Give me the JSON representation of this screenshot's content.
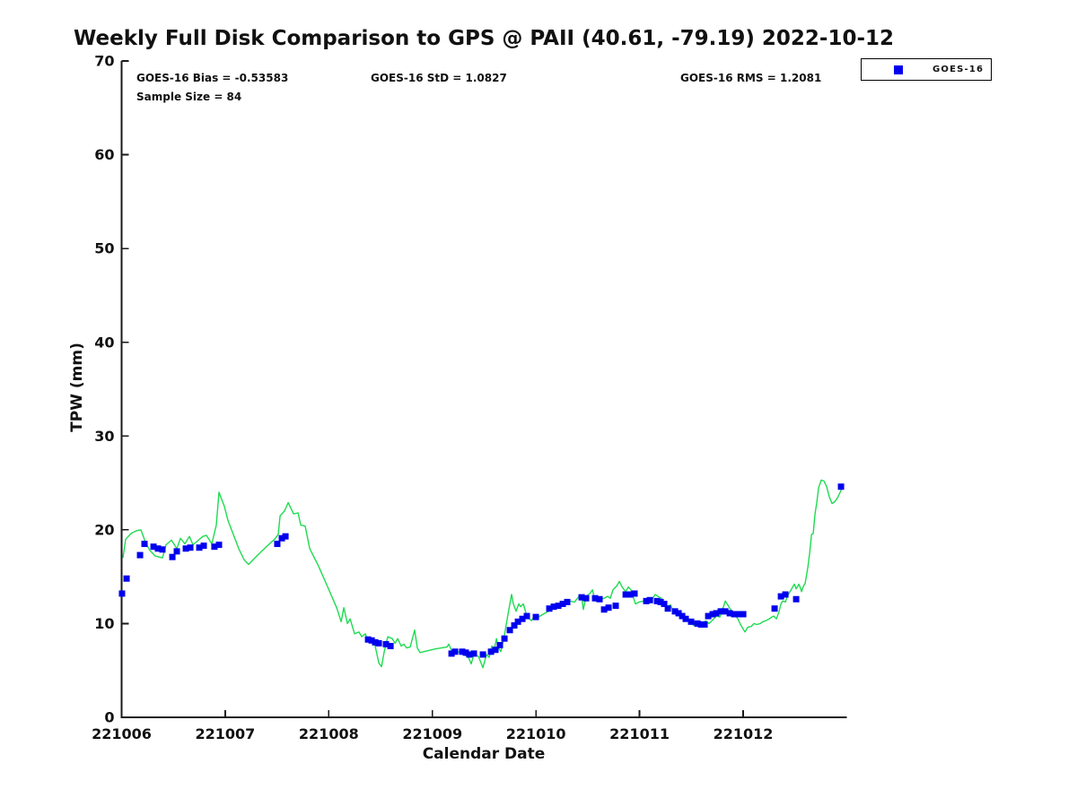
{
  "title": "Weekly Full Disk Comparison to GPS @ PAII (40.61, -79.19) 2022-10-12",
  "annotations": {
    "bias": "GOES-16 Bias = -0.53583",
    "std": "GOES-16 StD = 1.0827",
    "rms": "GOES-16 RMS = 1.2081",
    "sample_size": "Sample Size = 84"
  },
  "legend": {
    "label": "GOES-16",
    "marker_color": "#0000ee"
  },
  "colors": {
    "gps_line": "#1edb50",
    "goes_marker": "#0000ee",
    "axis": "#1a1a1a",
    "background": "#ffffff"
  },
  "chart_data": {
    "type": "line+scatter",
    "title": "Weekly Full Disk Comparison to GPS @ PAII (40.61, -79.19) 2022-10-12",
    "xlabel": "Calendar Date",
    "ylabel": "TPW (mm)",
    "x_tick_labels": [
      "221006",
      "221007",
      "221008",
      "221009",
      "221010",
      "221011",
      "221012"
    ],
    "x_tick_days": [
      0,
      1,
      2,
      3,
      4,
      5,
      6
    ],
    "xlim_days": [
      0,
      7
    ],
    "y_ticks": [
      0,
      10,
      20,
      30,
      40,
      50,
      60,
      70
    ],
    "ylim": [
      0,
      70
    ],
    "grid": false,
    "legend_position": "top-right-outside",
    "series": [
      {
        "name": "GPS",
        "type": "line",
        "color": "#1edb50",
        "points": [
          [
            0.013,
            17.0
          ],
          [
            0.039,
            19.0
          ],
          [
            0.091,
            19.6
          ],
          [
            0.143,
            19.9
          ],
          [
            0.186,
            20.0
          ],
          [
            0.23,
            18.7
          ],
          [
            0.273,
            17.8
          ],
          [
            0.325,
            17.2
          ],
          [
            0.394,
            17.0
          ],
          [
            0.429,
            18.4
          ],
          [
            0.481,
            18.9
          ],
          [
            0.533,
            18.0
          ],
          [
            0.568,
            19.1
          ],
          [
            0.611,
            18.5
          ],
          [
            0.654,
            19.3
          ],
          [
            0.689,
            18.4
          ],
          [
            0.732,
            18.8
          ],
          [
            0.784,
            19.3
          ],
          [
            0.819,
            19.4
          ],
          [
            0.871,
            18.5
          ],
          [
            0.914,
            20.5
          ],
          [
            0.94,
            24.0
          ],
          [
            0.992,
            22.5
          ],
          [
            1.027,
            21.0
          ],
          [
            1.079,
            19.5
          ],
          [
            1.131,
            18.0
          ],
          [
            1.183,
            16.8
          ],
          [
            1.226,
            16.3
          ],
          [
            1.313,
            17.3
          ],
          [
            1.408,
            18.3
          ],
          [
            1.477,
            19.0
          ],
          [
            1.512,
            19.5
          ],
          [
            1.53,
            21.5
          ],
          [
            1.573,
            22.0
          ],
          [
            1.608,
            22.9
          ],
          [
            1.66,
            21.7
          ],
          [
            1.703,
            21.8
          ],
          [
            1.729,
            20.5
          ],
          [
            1.772,
            20.4
          ],
          [
            1.816,
            18.0
          ],
          [
            1.902,
            16.1
          ],
          [
            1.989,
            13.9
          ],
          [
            2.076,
            11.7
          ],
          [
            2.119,
            10.2
          ],
          [
            2.145,
            11.7
          ],
          [
            2.18,
            10.0
          ],
          [
            2.206,
            10.5
          ],
          [
            2.249,
            8.9
          ],
          [
            2.292,
            9.1
          ],
          [
            2.318,
            8.6
          ],
          [
            2.353,
            8.9
          ],
          [
            2.379,
            8.1
          ],
          [
            2.422,
            8.4
          ],
          [
            2.448,
            7.6
          ],
          [
            2.483,
            5.8
          ],
          [
            2.509,
            5.4
          ],
          [
            2.535,
            7.0
          ],
          [
            2.57,
            8.6
          ],
          [
            2.613,
            8.4
          ],
          [
            2.639,
            7.9
          ],
          [
            2.665,
            8.4
          ],
          [
            2.699,
            7.6
          ],
          [
            2.725,
            7.8
          ],
          [
            2.751,
            7.4
          ],
          [
            2.786,
            7.5
          ],
          [
            2.829,
            9.3
          ],
          [
            2.855,
            7.4
          ],
          [
            2.881,
            6.9
          ],
          [
            2.916,
            7.0
          ],
          [
            3.029,
            7.3
          ],
          [
            3.141,
            7.5
          ],
          [
            3.158,
            7.8
          ],
          [
            3.202,
            6.7
          ],
          [
            3.245,
            7.0
          ],
          [
            3.288,
            6.8
          ],
          [
            3.349,
            6.4
          ],
          [
            3.375,
            5.7
          ],
          [
            3.401,
            6.7
          ],
          [
            3.444,
            6.5
          ],
          [
            3.488,
            5.3
          ],
          [
            3.522,
            6.7
          ],
          [
            3.548,
            6.4
          ],
          [
            3.574,
            7.6
          ],
          [
            3.592,
            6.9
          ],
          [
            3.618,
            8.4
          ],
          [
            3.635,
            7.5
          ],
          [
            3.661,
            7.0
          ],
          [
            3.696,
            8.8
          ],
          [
            3.722,
            10.5
          ],
          [
            3.765,
            13.1
          ],
          [
            3.782,
            12.1
          ],
          [
            3.808,
            11.3
          ],
          [
            3.834,
            12.1
          ],
          [
            3.852,
            11.8
          ],
          [
            3.878,
            12.1
          ],
          [
            3.912,
            10.8
          ],
          [
            3.956,
            10.3
          ],
          [
            3.982,
            10.8
          ],
          [
            4.025,
            10.7
          ],
          [
            4.068,
            11.0
          ],
          [
            4.155,
            11.5
          ],
          [
            4.242,
            11.9
          ],
          [
            4.285,
            12.1
          ],
          [
            4.328,
            12.4
          ],
          [
            4.372,
            12.3
          ],
          [
            4.415,
            12.9
          ],
          [
            4.441,
            12.7
          ],
          [
            4.458,
            11.5
          ],
          [
            4.484,
            12.9
          ],
          [
            4.519,
            13.2
          ],
          [
            4.545,
            13.6
          ],
          [
            4.571,
            12.4
          ],
          [
            4.606,
            12.7
          ],
          [
            4.632,
            12.6
          ],
          [
            4.658,
            12.7
          ],
          [
            4.692,
            12.9
          ],
          [
            4.718,
            12.7
          ],
          [
            4.744,
            13.6
          ],
          [
            4.779,
            14.0
          ],
          [
            4.805,
            14.5
          ],
          [
            4.831,
            13.9
          ],
          [
            4.866,
            13.4
          ],
          [
            4.892,
            13.9
          ],
          [
            4.918,
            13.6
          ],
          [
            4.952,
            12.4
          ],
          [
            4.961,
            12.1
          ],
          [
            4.996,
            12.3
          ],
          [
            5.039,
            12.4
          ],
          [
            5.082,
            12.5
          ],
          [
            5.126,
            12.7
          ],
          [
            5.152,
            13.1
          ],
          [
            5.178,
            12.9
          ],
          [
            5.212,
            12.7
          ],
          [
            5.238,
            12.1
          ],
          [
            5.264,
            11.8
          ],
          [
            5.299,
            12.0
          ],
          [
            5.325,
            11.3
          ],
          [
            5.351,
            11.0
          ],
          [
            5.386,
            11.2
          ],
          [
            5.412,
            10.7
          ],
          [
            5.438,
            10.3
          ],
          [
            5.472,
            10.5
          ],
          [
            5.498,
            10.0
          ],
          [
            5.524,
            9.8
          ],
          [
            5.542,
            10.2
          ],
          [
            5.568,
            10.3
          ],
          [
            5.602,
            9.9
          ],
          [
            5.637,
            10.3
          ],
          [
            5.672,
            10.0
          ],
          [
            5.698,
            10.3
          ],
          [
            5.741,
            10.8
          ],
          [
            5.776,
            10.7
          ],
          [
            5.802,
            11.5
          ],
          [
            5.828,
            12.4
          ],
          [
            5.862,
            11.8
          ],
          [
            5.888,
            11.3
          ],
          [
            5.914,
            11.0
          ],
          [
            5.949,
            10.5
          ],
          [
            5.975,
            9.9
          ],
          [
            6.001,
            9.4
          ],
          [
            6.018,
            9.1
          ],
          [
            6.044,
            9.6
          ],
          [
            6.079,
            9.7
          ],
          [
            6.105,
            10.0
          ],
          [
            6.131,
            9.9
          ],
          [
            6.166,
            10.0
          ],
          [
            6.192,
            10.2
          ],
          [
            6.218,
            10.3
          ],
          [
            6.252,
            10.5
          ],
          [
            6.278,
            10.7
          ],
          [
            6.296,
            10.8
          ],
          [
            6.322,
            10.5
          ],
          [
            6.348,
            11.3
          ],
          [
            6.365,
            12.1
          ],
          [
            6.382,
            12.4
          ],
          [
            6.408,
            12.3
          ],
          [
            6.426,
            12.9
          ],
          [
            6.452,
            13.4
          ],
          [
            6.478,
            13.9
          ],
          [
            6.495,
            14.2
          ],
          [
            6.512,
            13.7
          ],
          [
            6.538,
            14.2
          ],
          [
            6.556,
            13.7
          ],
          [
            6.564,
            13.4
          ],
          [
            6.582,
            14.0
          ],
          [
            6.599,
            14.3
          ],
          [
            6.625,
            16.0
          ],
          [
            6.642,
            17.5
          ],
          [
            6.66,
            19.5
          ],
          [
            6.677,
            19.6
          ],
          [
            6.694,
            21.7
          ],
          [
            6.712,
            23.0
          ],
          [
            6.729,
            24.5
          ],
          [
            6.755,
            25.3
          ],
          [
            6.781,
            25.2
          ],
          [
            6.807,
            24.6
          ],
          [
            6.833,
            23.5
          ],
          [
            6.859,
            22.8
          ],
          [
            6.885,
            23.0
          ],
          [
            6.911,
            23.4
          ],
          [
            6.937,
            24.0
          ],
          [
            6.971,
            24.9
          ]
        ]
      },
      {
        "name": "GOES-16",
        "type": "scatter",
        "marker": "square",
        "color": "#0000ee",
        "points": [
          [
            0.004,
            13.2
          ],
          [
            0.048,
            14.8
          ],
          [
            0.178,
            17.3
          ],
          [
            0.221,
            18.5
          ],
          [
            0.308,
            18.2
          ],
          [
            0.351,
            18.0
          ],
          [
            0.394,
            17.9
          ],
          [
            0.49,
            17.1
          ],
          [
            0.533,
            17.7
          ],
          [
            0.62,
            18.0
          ],
          [
            0.663,
            18.1
          ],
          [
            0.75,
            18.1
          ],
          [
            0.793,
            18.3
          ],
          [
            0.896,
            18.2
          ],
          [
            0.94,
            18.4
          ],
          [
            1.503,
            18.5
          ],
          [
            1.547,
            19.1
          ],
          [
            1.582,
            19.3
          ],
          [
            2.379,
            8.3
          ],
          [
            2.414,
            8.2
          ],
          [
            2.448,
            8.0
          ],
          [
            2.483,
            7.9
          ],
          [
            2.552,
            7.8
          ],
          [
            2.596,
            7.6
          ],
          [
            3.185,
            6.8
          ],
          [
            3.219,
            7.0
          ],
          [
            3.288,
            7.0
          ],
          [
            3.323,
            6.9
          ],
          [
            3.358,
            6.7
          ],
          [
            3.401,
            6.8
          ],
          [
            3.488,
            6.7
          ],
          [
            3.566,
            7.0
          ],
          [
            3.609,
            7.2
          ],
          [
            3.652,
            7.7
          ],
          [
            3.696,
            8.4
          ],
          [
            3.748,
            9.3
          ],
          [
            3.791,
            9.8
          ],
          [
            3.826,
            10.2
          ],
          [
            3.869,
            10.5
          ],
          [
            3.912,
            10.8
          ],
          [
            3.999,
            10.7
          ],
          [
            4.129,
            11.6
          ],
          [
            4.172,
            11.8
          ],
          [
            4.216,
            11.9
          ],
          [
            4.259,
            12.1
          ],
          [
            4.302,
            12.3
          ],
          [
            4.441,
            12.8
          ],
          [
            4.484,
            12.7
          ],
          [
            4.571,
            12.7
          ],
          [
            4.614,
            12.6
          ],
          [
            4.658,
            11.5
          ],
          [
            4.701,
            11.7
          ],
          [
            4.77,
            11.9
          ],
          [
            4.866,
            13.1
          ],
          [
            4.909,
            13.1
          ],
          [
            4.952,
            13.2
          ],
          [
            5.065,
            12.4
          ],
          [
            5.1,
            12.5
          ],
          [
            5.169,
            12.4
          ],
          [
            5.204,
            12.3
          ],
          [
            5.238,
            12.1
          ],
          [
            5.273,
            11.6
          ],
          [
            5.342,
            11.3
          ],
          [
            5.377,
            11.1
          ],
          [
            5.412,
            10.8
          ],
          [
            5.446,
            10.5
          ],
          [
            5.498,
            10.2
          ],
          [
            5.559,
            10.0
          ],
          [
            5.594,
            9.9
          ],
          [
            5.628,
            9.9
          ],
          [
            5.663,
            10.8
          ],
          [
            5.706,
            11.0
          ],
          [
            5.741,
            11.1
          ],
          [
            5.784,
            11.3
          ],
          [
            5.828,
            11.3
          ],
          [
            5.871,
            11.1
          ],
          [
            5.914,
            11.0
          ],
          [
            5.958,
            11.0
          ],
          [
            6.001,
            11.0
          ],
          [
            6.304,
            11.6
          ],
          [
            6.365,
            12.9
          ],
          [
            6.408,
            13.1
          ],
          [
            6.512,
            12.6
          ],
          [
            6.945,
            24.6
          ]
        ]
      }
    ]
  }
}
